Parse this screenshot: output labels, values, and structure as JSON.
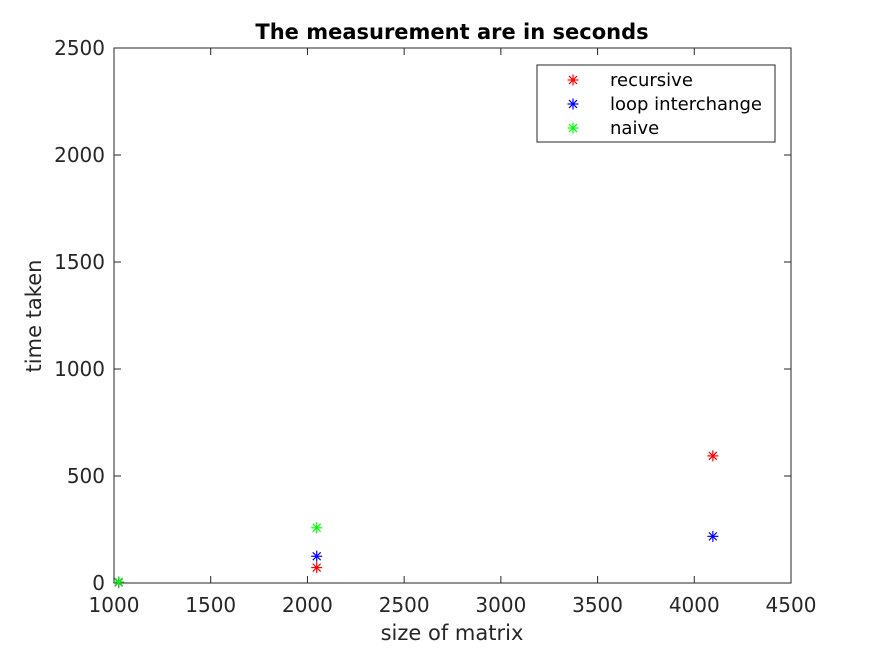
{
  "chart_data": {
    "type": "scatter",
    "title": "The measurement are in seconds",
    "xlabel": "size of matrix",
    "ylabel": "time taken",
    "xlim": [
      1000,
      4500
    ],
    "ylim": [
      0,
      2500
    ],
    "xticks": [
      1000,
      1500,
      2000,
      2500,
      3000,
      3500,
      4000,
      4500
    ],
    "yticks": [
      0,
      500,
      1000,
      1500,
      2000,
      2500
    ],
    "grid": false,
    "legend_position": "top-right",
    "marker": "asterisk",
    "series": [
      {
        "name": "recursive",
        "color": "#ff0000",
        "points": [
          [
            1024,
            3
          ],
          [
            2048,
            72
          ],
          [
            4096,
            594
          ]
        ]
      },
      {
        "name": "loop interchange",
        "color": "#0000ff",
        "points": [
          [
            1024,
            4
          ],
          [
            2048,
            125
          ],
          [
            4096,
            218
          ]
        ]
      },
      {
        "name": "naive",
        "color": "#00ff00",
        "points": [
          [
            1024,
            5
          ],
          [
            2048,
            258
          ]
        ]
      }
    ]
  }
}
